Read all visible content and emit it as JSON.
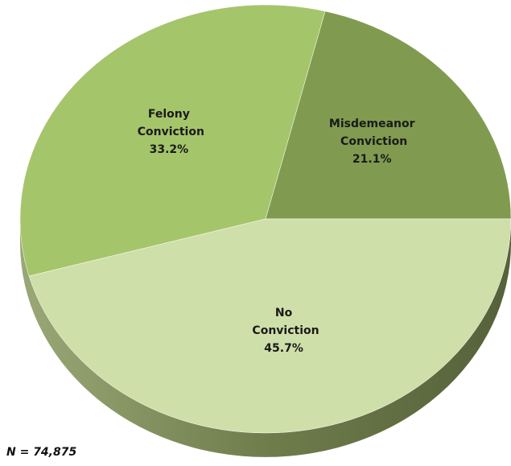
{
  "chart_data": {
    "type": "pie",
    "categories": [
      "Misdemeanor Conviction",
      "Felony Conviction",
      "No Conviction"
    ],
    "values": [
      21.1,
      33.2,
      45.7
    ],
    "value_labels": [
      "21.1%",
      "33.2%",
      "45.7%"
    ],
    "colors": [
      "#809b4f",
      "#a5c56b",
      "#cfdfa9"
    ],
    "note": "N = 74,875"
  }
}
